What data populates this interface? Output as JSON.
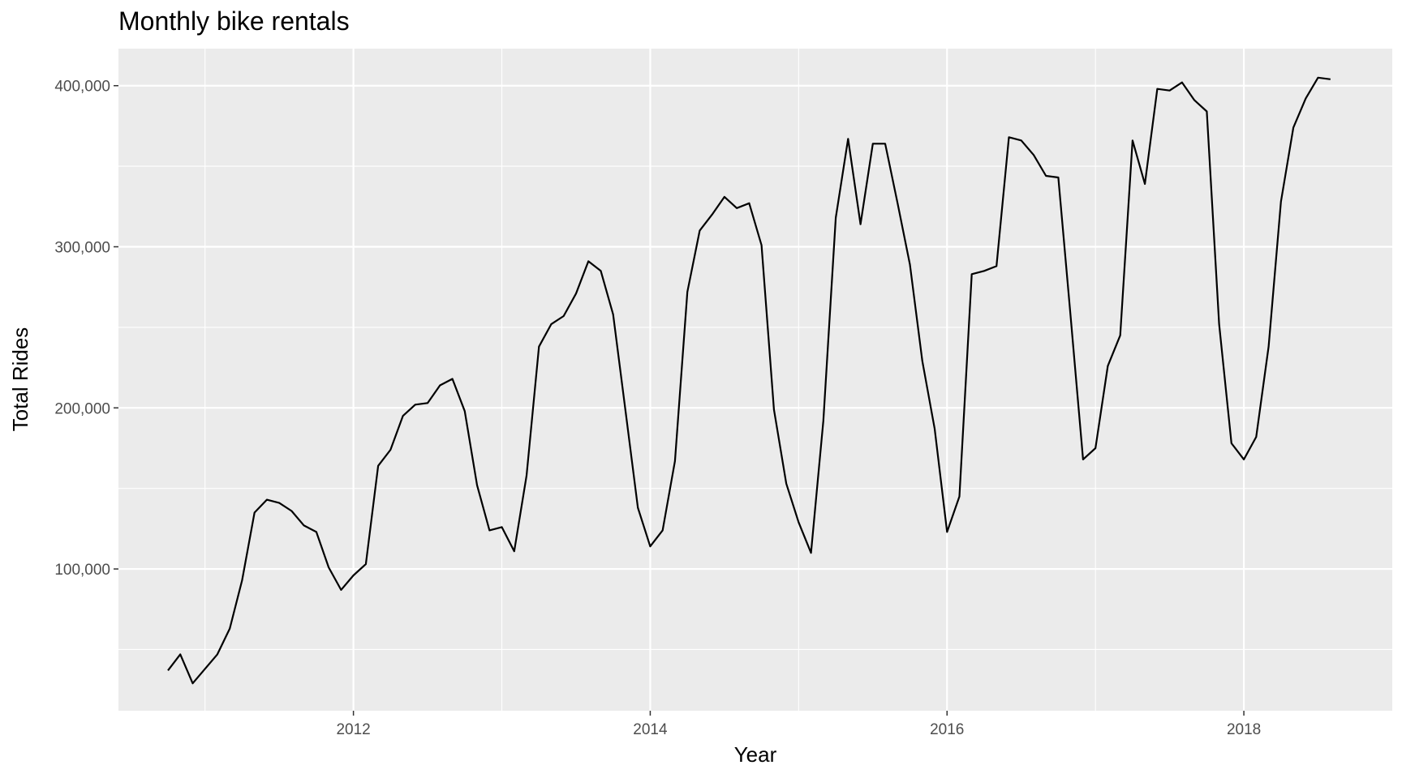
{
  "chart_data": {
    "type": "line",
    "title": "Monthly bike rentals",
    "xlabel": "Year",
    "ylabel": "Total Rides",
    "xlim": [
      "2010-06-01",
      "2019-01-01"
    ],
    "ylim": [
      12000,
      423000
    ],
    "x_ticks": [
      "2012",
      "2014",
      "2016",
      "2018"
    ],
    "y_ticks": [
      "100,000",
      "200,000",
      "300,000",
      "400,000"
    ],
    "y_tick_values": [
      100000,
      200000,
      300000,
      400000
    ],
    "grid": true,
    "colors": {
      "panel": "#ebebeb",
      "grid": "#ffffff",
      "line": "#000000"
    },
    "series": [
      {
        "x": [
          "2010-10",
          "2010-11",
          "2010-12",
          "2011-01",
          "2011-02",
          "2011-03",
          "2011-04",
          "2011-05",
          "2011-06",
          "2011-07",
          "2011-08",
          "2011-09",
          "2011-10",
          "2011-11",
          "2011-12",
          "2012-01",
          "2012-02",
          "2012-03",
          "2012-04",
          "2012-05",
          "2012-06",
          "2012-07",
          "2012-08",
          "2012-09",
          "2012-10",
          "2012-11",
          "2012-12",
          "2013-01",
          "2013-02",
          "2013-03",
          "2013-04",
          "2013-05",
          "2013-06",
          "2013-07",
          "2013-08",
          "2013-09",
          "2013-10",
          "2013-11",
          "2013-12",
          "2014-01",
          "2014-02",
          "2014-03",
          "2014-04",
          "2014-05",
          "2014-06",
          "2014-07",
          "2014-08",
          "2014-09",
          "2014-10",
          "2014-11",
          "2014-12",
          "2015-01",
          "2015-02",
          "2015-03",
          "2015-04",
          "2015-05",
          "2015-06",
          "2015-07",
          "2015-08",
          "2015-09",
          "2015-10",
          "2015-11",
          "2015-12",
          "2016-01",
          "2016-02",
          "2016-03",
          "2016-04",
          "2016-05",
          "2016-06",
          "2016-07",
          "2016-08",
          "2016-09",
          "2016-10",
          "2016-11",
          "2016-12",
          "2017-01",
          "2017-02",
          "2017-03",
          "2017-04",
          "2017-05",
          "2017-06",
          "2017-07",
          "2017-08",
          "2017-09",
          "2017-10",
          "2017-11",
          "2017-12",
          "2018-01",
          "2018-02",
          "2018-03",
          "2018-04",
          "2018-05",
          "2018-06",
          "2018-07",
          "2018-08"
        ],
        "values": [
          37000,
          47000,
          29000,
          38000,
          47000,
          63000,
          93000,
          135000,
          143000,
          141000,
          136000,
          127000,
          123000,
          101000,
          87000,
          96000,
          103000,
          164000,
          174000,
          195000,
          202000,
          203000,
          214000,
          218000,
          198000,
          152000,
          124000,
          126000,
          111000,
          158000,
          238000,
          252000,
          257000,
          271000,
          291000,
          285000,
          258000,
          198000,
          138000,
          114000,
          124000,
          167000,
          272000,
          310000,
          320000,
          331000,
          324000,
          327000,
          301000,
          199000,
          153000,
          129000,
          110000,
          192000,
          318000,
          367000,
          314000,
          364000,
          364000,
          327000,
          289000,
          229000,
          187000,
          123000,
          145000,
          283000,
          285000,
          288000,
          368000,
          366000,
          357000,
          344000,
          343000,
          256000,
          168000,
          175000,
          226000,
          245000,
          366000,
          339000,
          398000,
          397000,
          402000,
          391000,
          384000,
          252000,
          178000,
          168000,
          182000,
          238000,
          328000,
          374000,
          392000,
          405000,
          404000
        ]
      }
    ]
  }
}
